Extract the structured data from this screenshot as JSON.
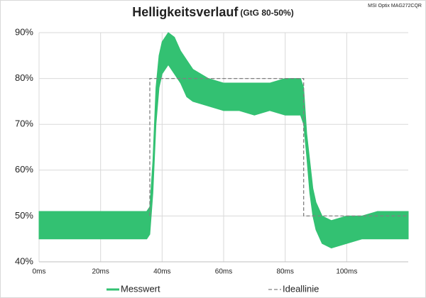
{
  "chart_data": {
    "type": "line",
    "title": "Helligkeitsverlauf",
    "subtitle": "(GtG 80-50%)",
    "note": "MSI Optix MAG272CQR",
    "xlim": [
      0,
      120
    ],
    "xticks": [
      {
        "value": 0,
        "label": "0ms"
      },
      {
        "value": 20,
        "label": "20ms"
      },
      {
        "value": 40,
        "label": "40ms"
      },
      {
        "value": 60,
        "label": "60ms"
      },
      {
        "value": 80,
        "label": "80ms"
      },
      {
        "value": 100,
        "label": "100ms"
      }
    ],
    "ylim": [
      40,
      90
    ],
    "yticks": [
      {
        "value": 40,
        "label": "40%"
      },
      {
        "value": 50,
        "label": "50%"
      },
      {
        "value": 60,
        "label": "60%"
      },
      {
        "value": 70,
        "label": "70%"
      },
      {
        "value": 80,
        "label": "80%"
      },
      {
        "value": 90,
        "label": "90%"
      }
    ],
    "grid": true,
    "series": [
      {
        "name": "Messwert",
        "color": "#33c172",
        "style": "band",
        "x": [
          0,
          10,
          20,
          30,
          35,
          36,
          37,
          38,
          39,
          40,
          42,
          44,
          46,
          48,
          50,
          55,
          60,
          65,
          70,
          75,
          80,
          85,
          86,
          87,
          88,
          89,
          90,
          92,
          95,
          100,
          105,
          110,
          120
        ],
        "low": [
          45,
          45,
          45,
          45,
          45,
          46,
          55,
          70,
          78,
          81,
          83,
          81,
          79,
          76,
          75,
          74,
          73,
          73,
          72,
          73,
          72,
          72,
          70,
          63,
          55,
          50,
          47,
          44,
          43,
          44,
          45,
          45,
          45
        ],
        "high": [
          51,
          51,
          51,
          51,
          51,
          52,
          62,
          78,
          85,
          88,
          90,
          89,
          86,
          84,
          82,
          80,
          79,
          79,
          79,
          79,
          80,
          80,
          78,
          68,
          62,
          56,
          53,
          50,
          49,
          50,
          50,
          51,
          51
        ]
      },
      {
        "name": "Ideallinie",
        "color": "#808080",
        "style": "dashed",
        "x": [
          36,
          36,
          86,
          86,
          120
        ],
        "values": [
          50,
          80,
          80,
          50,
          50
        ]
      }
    ]
  }
}
